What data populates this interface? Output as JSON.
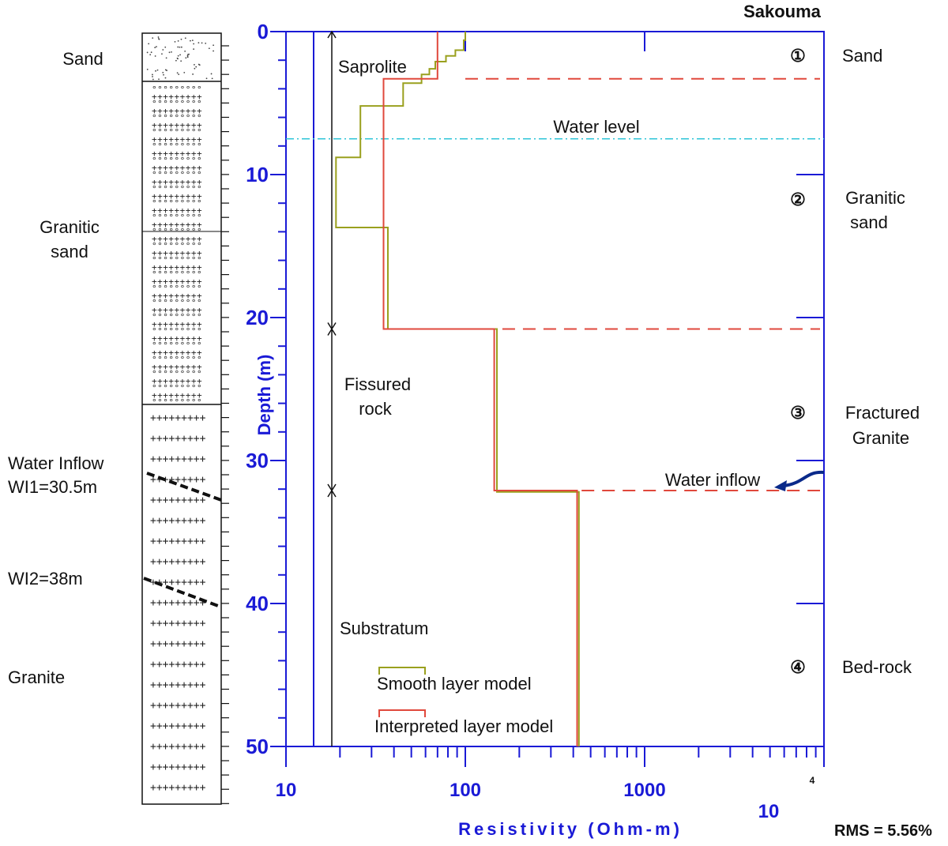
{
  "chart_data": {
    "type": "line",
    "title": "Sakouma",
    "xlabel": "Resistivity  (Ohm-m)",
    "ylabel": "Depth (m)",
    "x_scale": "log",
    "xlim": [
      10,
      10000
    ],
    "ylim": [
      50,
      0
    ],
    "x_ticks": [
      "10",
      "100",
      "1000",
      "10"
    ],
    "x_tick_exponent": "4",
    "y_ticks": [
      "0",
      "10",
      "20",
      "30",
      "40",
      "50"
    ],
    "rms": "RMS = 5.56%",
    "series": [
      {
        "name": "Smooth layer model",
        "color": "#9aa01e",
        "points": [
          [
            100,
            0
          ],
          [
            100,
            0.6
          ],
          [
            98,
            0.6
          ],
          [
            98,
            1.3
          ],
          [
            88,
            1.3
          ],
          [
            88,
            1.7
          ],
          [
            78,
            1.7
          ],
          [
            78,
            2.1
          ],
          [
            68,
            2.1
          ],
          [
            68,
            2.6
          ],
          [
            63,
            2.6
          ],
          [
            63,
            3.0
          ],
          [
            57,
            3.0
          ],
          [
            57,
            3.6
          ],
          [
            45,
            3.6
          ],
          [
            45,
            5.2
          ],
          [
            26,
            5.2
          ],
          [
            26,
            7.9
          ],
          [
            26,
            7.9
          ],
          [
            26,
            8.8
          ],
          [
            19,
            8.8
          ],
          [
            19,
            13.7
          ],
          [
            37,
            13.7
          ],
          [
            37,
            20.8
          ],
          [
            150,
            20.8
          ],
          [
            150,
            32.2
          ],
          [
            430,
            32.2
          ],
          [
            430,
            50
          ]
        ]
      },
      {
        "name": "Interpreted layer model",
        "color": "#e0483c",
        "points": [
          [
            70,
            0
          ],
          [
            70,
            3.3
          ],
          [
            35,
            3.3
          ],
          [
            35,
            20.8
          ],
          [
            145,
            20.8
          ],
          [
            145,
            32.1
          ],
          [
            420,
            32.1
          ],
          [
            420,
            50
          ]
        ]
      }
    ],
    "interfaces_depth_m": [
      3.3,
      20.8,
      32.1
    ],
    "water_level_depth_m": 7.5,
    "layers": [
      {
        "number": "①",
        "name": "Sand"
      },
      {
        "number": "②",
        "name": "Granitic sand"
      },
      {
        "number": "③",
        "name": "Fractured Granite"
      },
      {
        "number": "④",
        "name": "Bed-rock"
      }
    ],
    "zones": [
      {
        "name": "Saprolite",
        "from_m": 0,
        "to_m": 20.8
      },
      {
        "name": "Fissured rock",
        "from_m": 20.8,
        "to_m": 32.1
      },
      {
        "name": "Substratum",
        "from_m": 32.1,
        "to_m": 50
      }
    ],
    "annotations": {
      "water_level": "Water level",
      "water_inflow": "Water inflow"
    }
  },
  "lithology_log": {
    "sand": "Sand",
    "granitic_sand": [
      "Granitic",
      "sand"
    ],
    "water_inflow": [
      "Water Inflow",
      "WI1=30.5m"
    ],
    "wi2": "WI2=38m",
    "granite": "Granite"
  },
  "colors": {
    "axis": "#1a1ad6",
    "smooth": "#9aa01e",
    "interpreted": "#e0483c",
    "interface_dash": "#e0483c",
    "water_level": "#2ec4d8",
    "inflow_arrow": "#0a2a8a"
  }
}
